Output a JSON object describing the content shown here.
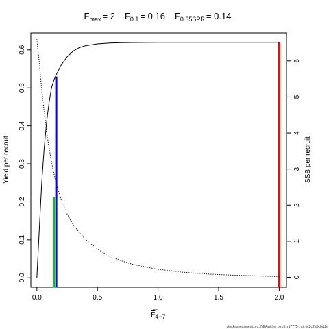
{
  "chart_data": {
    "type": "line",
    "title": {
      "fmax_name": "F",
      "fmax_sub": "max",
      "fmax_value": "= 2",
      "f01_name": "F",
      "f01_sub": "0.1",
      "f01_value": "= 0.16",
      "fspr_name": "F",
      "fspr_sub": "0.35SPR",
      "fspr_value": "= 0.14"
    },
    "xlabel": {
      "base": "F",
      "sub": "4−7"
    },
    "ylabel_left": "Yield per recruit",
    "ylabel_right": "SSB per recruit",
    "xlim": [
      -0.05,
      2.06
    ],
    "ylim_left": [
      -0.0248,
      0.6448
    ],
    "ylim_right": [
      -0.276,
      6.776
    ],
    "x_ticks": [
      0,
      0.5,
      1,
      1.5,
      2
    ],
    "x_tick_labels": [
      "0.0",
      "0.5",
      "1.0",
      "1.5",
      "2.0"
    ],
    "y_left_ticks": [
      0,
      0.1,
      0.2,
      0.3,
      0.4,
      0.5,
      0.6
    ],
    "y_left_tick_labels": [
      "0.0",
      "0.1",
      "0.2",
      "0.3",
      "0.4",
      "0.5",
      "0.6"
    ],
    "y_right_ticks": [
      0,
      1,
      2,
      3,
      4,
      5,
      6
    ],
    "y_right_tick_labels": [
      "0",
      "1",
      "2",
      "3",
      "4",
      "5",
      "6"
    ],
    "series": [
      {
        "axis": "left",
        "style": "solid",
        "color": "#000000",
        "x": [
          0,
          0.02,
          0.04,
          0.06,
          0.08,
          0.1,
          0.12,
          0.14,
          0.16,
          0.2,
          0.25,
          0.3,
          0.35,
          0.4,
          0.5,
          0.6,
          0.7,
          0.8,
          1.0,
          1.2,
          1.5,
          2.0
        ],
        "y": [
          0,
          0.13,
          0.25,
          0.34,
          0.41,
          0.46,
          0.5,
          0.52,
          0.535,
          0.56,
          0.582,
          0.597,
          0.606,
          0.611,
          0.616,
          0.618,
          0.619,
          0.6195,
          0.62,
          0.62,
          0.62,
          0.62
        ]
      },
      {
        "axis": "right",
        "style": "dotted",
        "color": "#000000",
        "x": [
          0,
          0.02,
          0.04,
          0.06,
          0.08,
          0.1,
          0.12,
          0.14,
          0.16,
          0.2,
          0.25,
          0.3,
          0.4,
          0.5,
          0.6,
          0.7,
          0.8,
          1.0,
          1.2,
          1.4,
          1.6,
          1.8,
          2.0
        ],
        "y": [
          6.6,
          5.95,
          5.2,
          4.6,
          4.05,
          3.6,
          3.2,
          2.88,
          2.6,
          2.15,
          1.75,
          1.45,
          1.05,
          0.78,
          0.58,
          0.45,
          0.35,
          0.22,
          0.14,
          0.09,
          0.06,
          0.04,
          0.02
        ]
      }
    ],
    "reference_lines": [
      {
        "label": "F0.35SPR",
        "x": 0.14,
        "y_top": 0.213,
        "axis": "left",
        "color": "#00cc00"
      },
      {
        "label": "F0.1",
        "x": 0.16,
        "y_top": 0.53,
        "axis": "left",
        "color": "#0000ff"
      },
      {
        "label": "Fmax",
        "x": 2.0,
        "y_top": 0.62,
        "axis": "left",
        "color": "#ff0000"
      }
    ],
    "grid": false,
    "legend": "none"
  },
  "credit": "stockassessment.org, NEAwithe_bmr5, r17775 , git:ec2c2a0c6dde"
}
